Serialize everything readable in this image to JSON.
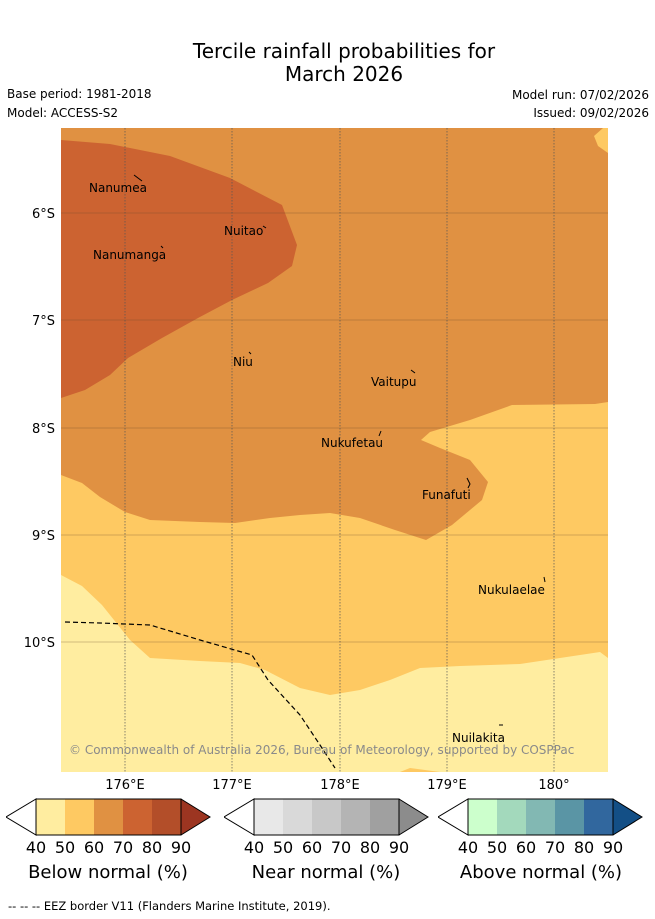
{
  "title": {
    "line1": "Tercile rainfall probabilities for",
    "line2": "March 2026"
  },
  "meta": {
    "base_period": "Base period: 1981-2018",
    "model": "Model: ACCESS-S2",
    "model_run": "Model run: 07/02/2026",
    "issued": "Issued: 09/02/2026"
  },
  "map": {
    "latitude_labels": [
      "6°S",
      "7°S",
      "8°S",
      "9°S",
      "10°S"
    ],
    "longitude_labels": [
      "176°E",
      "177°E",
      "178°E",
      "179°E",
      "180°"
    ],
    "places": {
      "nanumea": "Nanumea",
      "nuitao": "Nuitao",
      "nanumanga": "Nanumanga",
      "niu": "Niu",
      "vaitupu": "Vaitupu",
      "nukufetau": "Nukufetau",
      "funafuti": "Funafuti",
      "nukulaelae": "Nukulaelae",
      "nuilakita": "Nuilakita"
    },
    "copyright": "© Commonwealth of Australia 2026, Bureau of Meteorology, supported by COSPPac",
    "colors": {
      "below_40": "#ffeda0",
      "below_50": "#fec962",
      "below_60": "#e09142",
      "below_70": "#cc6331",
      "below_80": "#b34e29",
      "below_90": "#9c3521"
    }
  },
  "legend": {
    "ticks": [
      "40",
      "50",
      "60",
      "70",
      "80",
      "90"
    ],
    "below": {
      "label": "Below normal (%)",
      "colors": [
        "#ffeda0",
        "#fec962",
        "#e09142",
        "#cc6331",
        "#b34e29",
        "#9c3521"
      ]
    },
    "near": {
      "label": "Near normal (%)",
      "colors": [
        "#e8e8e8",
        "#d9d9d9",
        "#c8c8c8",
        "#b4b4b4",
        "#a0a0a0",
        "#8c8c8c"
      ]
    },
    "above": {
      "label": "Above normal (%)",
      "colors": [
        "#ccffcc",
        "#a3d9bc",
        "#82b8b3",
        "#5a95a5",
        "#31679e",
        "#134f86"
      ]
    }
  },
  "footer": "--  --  -- EEZ border V11 (Flanders Marine Institute, 2019)."
}
